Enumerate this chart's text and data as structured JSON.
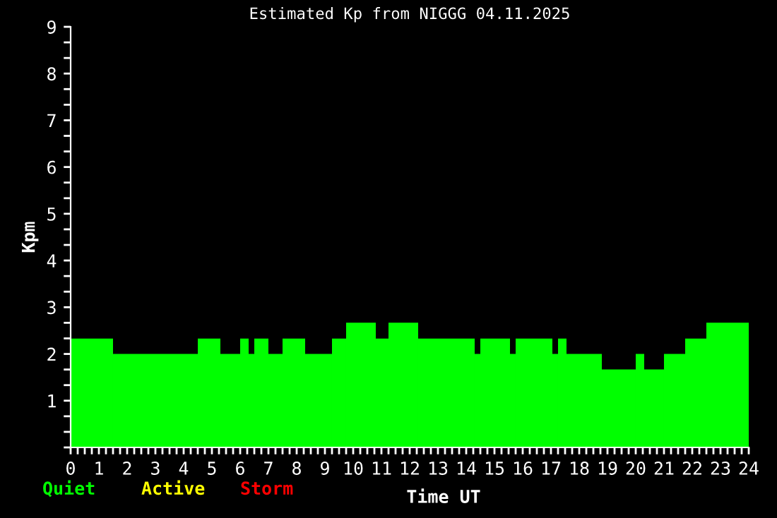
{
  "chart_data": {
    "type": "histogram",
    "title": "Estimated Kp from NIGGG 04.11.2025",
    "xlabel": "Time UT",
    "ylabel": "Kpm",
    "bins": [
      0,
      1.5,
      4.5,
      5.3,
      6,
      6.3,
      6.5,
      7,
      7.5,
      8.3,
      9.25,
      9.75,
      10.8,
      11.25,
      12.3,
      14.3,
      14.5,
      15.55,
      15.75,
      17.05,
      17.25,
      17.55,
      18.8,
      20,
      20.3,
      21,
      21.75,
      22.5,
      24
    ],
    "series": [
      {
        "color": "#00ff00",
        "values": [
          2.33,
          2,
          2.33,
          2,
          2.33,
          2,
          2.33,
          2,
          2.33,
          2,
          2.33,
          2.67,
          2.33,
          2.67,
          2.33,
          2,
          2.33,
          2,
          2.33,
          2,
          2.33,
          2,
          1.67,
          2,
          1.67,
          2,
          2.33,
          2.67
        ]
      }
    ],
    "annotations": [
      "Quiet",
      "Active",
      "Storm"
    ],
    "xlim": [
      0,
      24
    ],
    "ylim": [
      0,
      9
    ],
    "xticks": [
      0,
      {
        "value": 0.25,
        "label": null
      },
      {
        "value": 0.5,
        "label": null
      },
      {
        "value": 0.75,
        "label": null
      },
      1,
      {
        "value": 1.25,
        "label": null
      },
      {
        "value": 1.5,
        "label": null
      },
      {
        "value": 1.75,
        "label": null
      },
      2,
      {
        "value": 2.25,
        "label": null
      },
      {
        "value": 2.5,
        "label": null
      },
      {
        "value": 2.75,
        "label": null
      },
      3,
      {
        "value": 3.25,
        "label": null
      },
      {
        "value": 3.5,
        "label": null
      },
      {
        "value": 3.75,
        "label": null
      },
      4,
      {
        "value": 4.25,
        "label": null
      },
      {
        "value": 4.5,
        "label": null
      },
      {
        "value": 4.75,
        "label": null
      },
      5,
      {
        "value": 5.25,
        "label": null
      },
      {
        "value": 5.5,
        "label": null
      },
      {
        "value": 5.75,
        "label": null
      },
      6,
      {
        "value": 6.25,
        "label": null
      },
      {
        "value": 6.5,
        "label": null
      },
      {
        "value": 6.75,
        "label": null
      },
      7,
      {
        "value": 7.25,
        "label": null
      },
      {
        "value": 7.5,
        "label": null
      },
      {
        "value": 7.75,
        "label": null
      },
      8,
      {
        "value": 8.25,
        "label": null
      },
      {
        "value": 8.5,
        "label": null
      },
      {
        "value": 8.75,
        "label": null
      },
      9,
      {
        "value": 9.25,
        "label": null
      },
      {
        "value": 9.5,
        "label": null
      },
      {
        "value": 9.75,
        "label": null
      },
      10,
      {
        "value": 10.25,
        "label": null
      },
      {
        "value": 10.5,
        "label": null
      },
      {
        "value": 10.75,
        "label": null
      },
      11,
      {
        "value": 11.25,
        "label": null
      },
      {
        "value": 11.5,
        "label": null
      },
      {
        "value": 11.75,
        "label": null
      },
      12,
      {
        "value": 12.25,
        "label": null
      },
      {
        "value": 12.5,
        "label": null
      },
      {
        "value": 12.75,
        "label": null
      },
      13,
      {
        "value": 13.25,
        "label": null
      },
      {
        "value": 13.5,
        "label": null
      },
      {
        "value": 13.75,
        "label": null
      },
      14,
      {
        "value": 14.25,
        "label": null
      },
      {
        "value": 14.5,
        "label": null
      },
      {
        "value": 14.75,
        "label": null
      },
      15,
      {
        "value": 15.25,
        "label": null
      },
      {
        "value": 15.5,
        "label": null
      },
      {
        "value": 15.75,
        "label": null
      },
      16,
      {
        "value": 16.25,
        "label": null
      },
      {
        "value": 16.5,
        "label": null
      },
      {
        "value": 16.75,
        "label": null
      },
      17,
      {
        "value": 17.25,
        "label": null
      },
      {
        "value": 17.5,
        "label": null
      },
      {
        "value": 17.75,
        "label": null
      },
      18,
      {
        "value": 18.25,
        "label": null
      },
      {
        "value": 18.5,
        "label": null
      },
      {
        "value": 18.75,
        "label": null
      },
      19,
      {
        "value": 19.25,
        "label": null
      },
      {
        "value": 19.5,
        "label": null
      },
      {
        "value": 19.75,
        "label": null
      },
      20,
      {
        "value": 20.25,
        "label": null
      },
      {
        "value": 20.5,
        "label": null
      },
      {
        "value": 20.75,
        "label": null
      },
      21,
      {
        "value": 21.25,
        "label": null
      },
      {
        "value": 21.5,
        "label": null
      },
      {
        "value": 21.75,
        "label": null
      },
      22,
      {
        "value": 22.25,
        "label": null
      },
      {
        "value": 22.5,
        "label": null
      },
      {
        "value": 22.75,
        "label": null
      },
      23,
      {
        "value": 23.25,
        "label": null
      },
      {
        "value": 23.5,
        "label": null
      },
      {
        "value": 23.75,
        "label": null
      },
      24
    ],
    "yticks": [
      {
        "value": 0,
        "label": null
      },
      {
        "value": 0.333,
        "label": null
      },
      {
        "value": 0.667,
        "label": null
      },
      1,
      {
        "value": 1.333,
        "label": null
      },
      {
        "value": 1.667,
        "label": null
      },
      2,
      {
        "value": 2.333,
        "label": null
      },
      {
        "value": 2.667,
        "label": null
      },
      3,
      {
        "value": 3.333,
        "label": null
      },
      {
        "value": 3.667,
        "label": null
      },
      4,
      {
        "value": 4.333,
        "label": null
      },
      {
        "value": 4.667,
        "label": null
      },
      5,
      {
        "value": 5.333,
        "label": null
      },
      {
        "value": 5.667,
        "label": null
      },
      6,
      {
        "value": 6.333,
        "label": null
      },
      {
        "value": 6.667,
        "label": null
      },
      7,
      {
        "value": 7.333,
        "label": null
      },
      {
        "value": 7.667,
        "label": null
      },
      8,
      {
        "value": 8.333,
        "label": null
      },
      {
        "value": 8.667,
        "label": null
      },
      9
    ],
    "grid": false
  }
}
